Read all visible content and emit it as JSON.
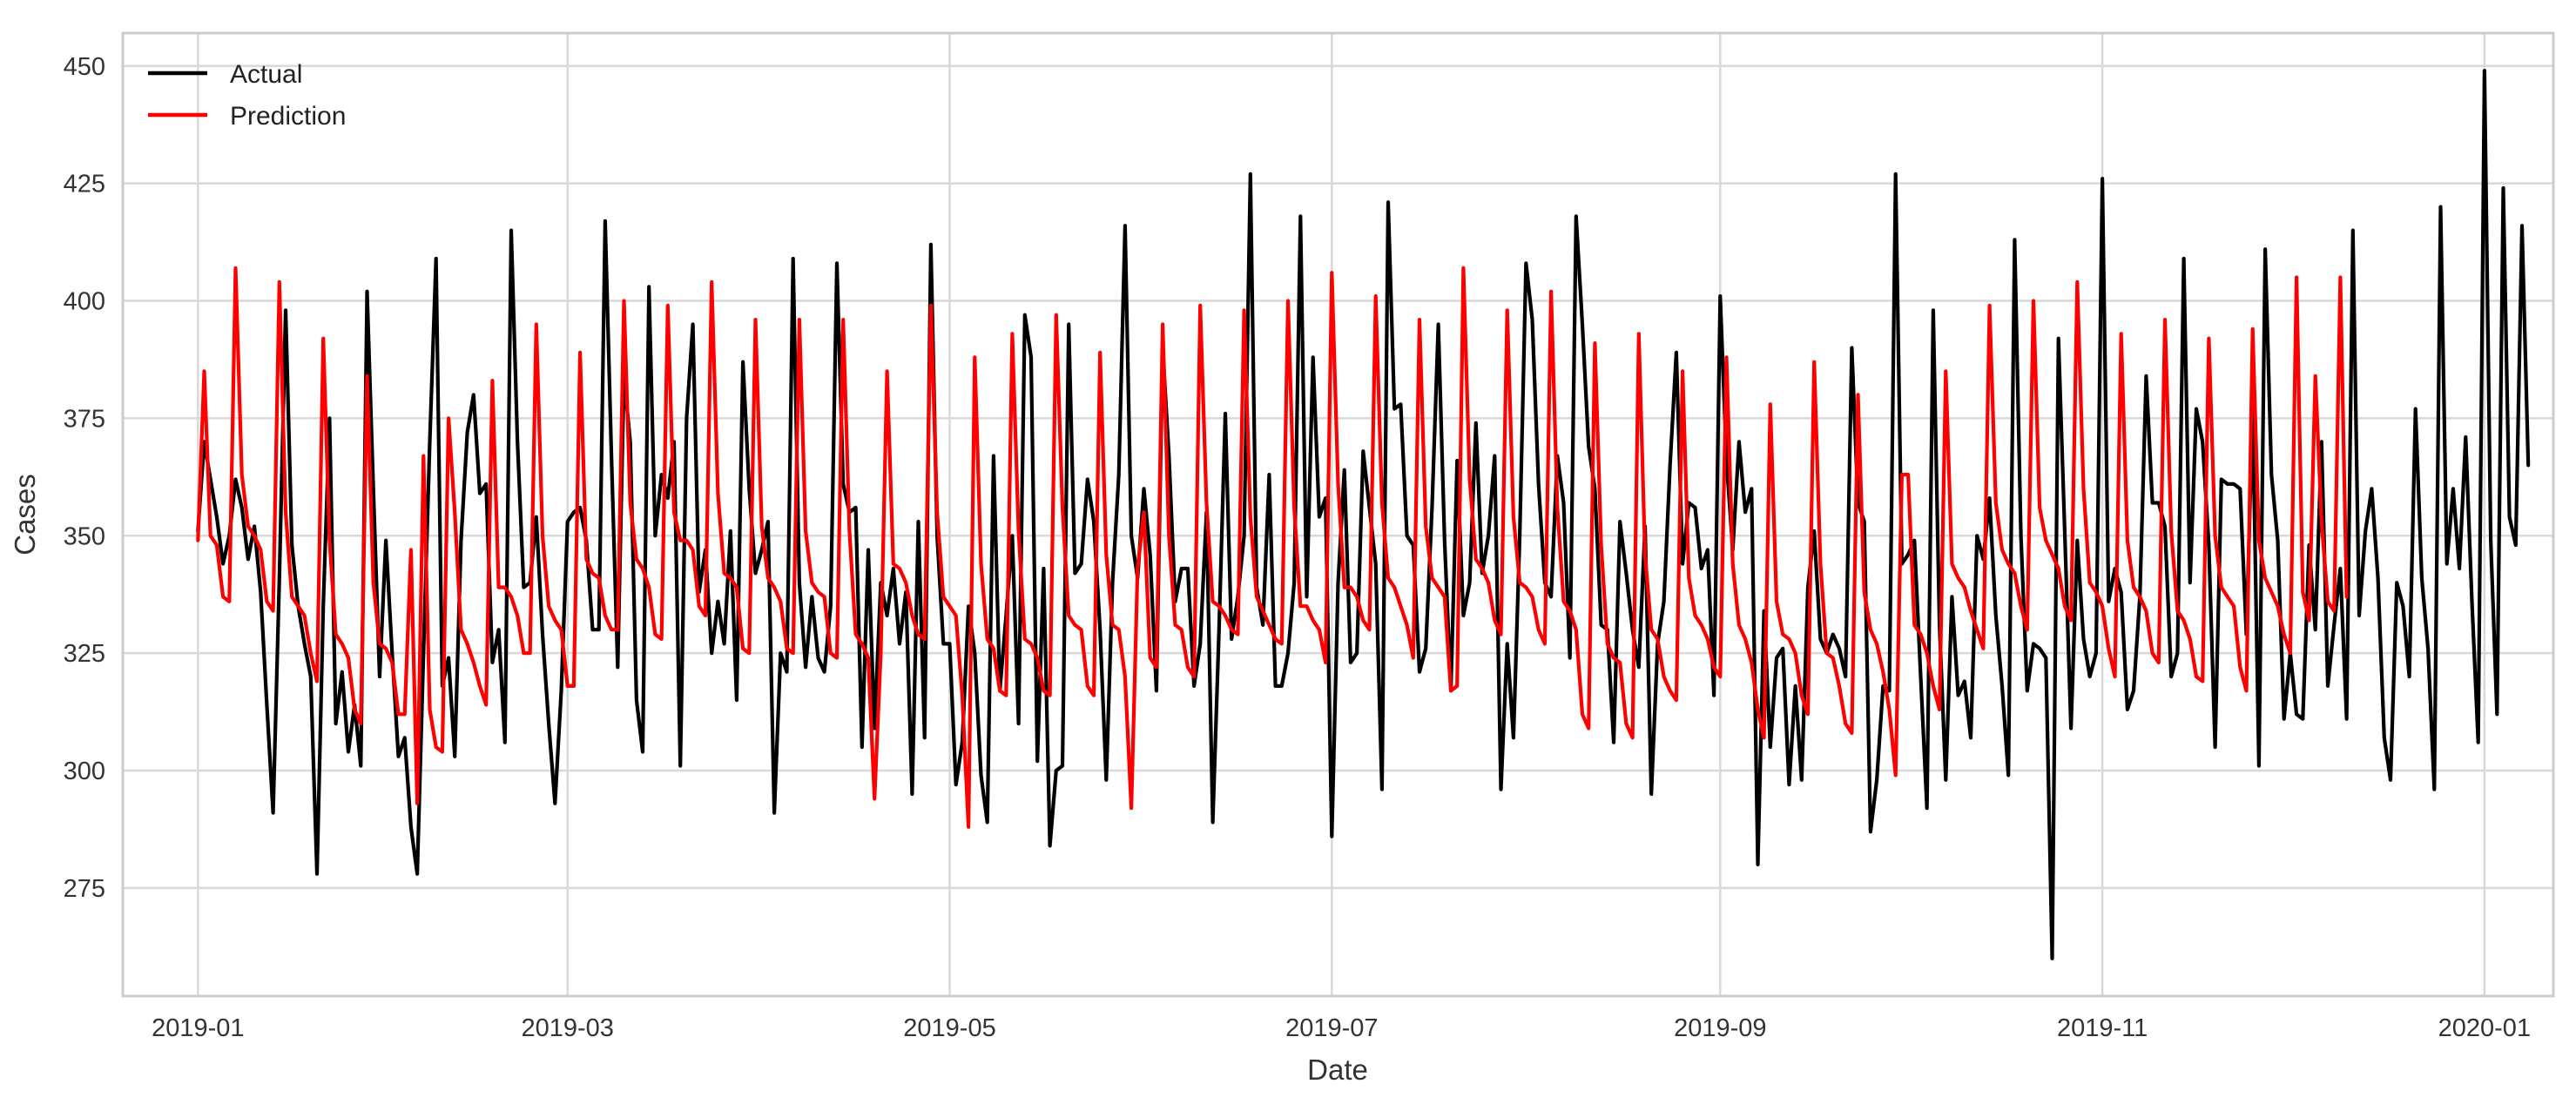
{
  "chart_data": {
    "type": "line",
    "title": "",
    "xlabel": "Date",
    "ylabel": "Cases",
    "x_start": "2019-01-01",
    "x_end": "2019-12-31",
    "xlim": [
      "2018-12-20",
      "2020-01-12"
    ],
    "ylim": [
      252,
      457
    ],
    "x_ticks": [
      "2019-01",
      "2019-03",
      "2019-05",
      "2019-07",
      "2019-09",
      "2019-11",
      "2020-01"
    ],
    "x_tick_dates": [
      "2019-01-01",
      "2019-03-01",
      "2019-05-01",
      "2019-07-01",
      "2019-09-01",
      "2019-11-01",
      "2020-01-01"
    ],
    "y_ticks": [
      275,
      300,
      325,
      350,
      375,
      400,
      425,
      450
    ],
    "grid": true,
    "legend_position": "top-left",
    "colors": {
      "Actual": "#000000",
      "Prediction": "#ff0000",
      "grid": "#d9d9d9",
      "frame": "#cccccc"
    },
    "series": [
      {
        "name": "Actual",
        "values": [
          351,
          370,
          362,
          354,
          344,
          350,
          362,
          356,
          345,
          352,
          338,
          314,
          291,
          341,
          398,
          348,
          335,
          327,
          320,
          278,
          335,
          375,
          310,
          321,
          304,
          314,
          301,
          402,
          360,
          320,
          349,
          325,
          303,
          307,
          288,
          278,
          325,
          370,
          409,
          318,
          324,
          303,
          349,
          372,
          380,
          359,
          361,
          323,
          330,
          306,
          415,
          370,
          339,
          340,
          354,
          329,
          310,
          293,
          317,
          353,
          355,
          356,
          349,
          330,
          330,
          417,
          367,
          322,
          384,
          370,
          315,
          304,
          403,
          350,
          363,
          358,
          370,
          301,
          375,
          395,
          338,
          347,
          325,
          336,
          327,
          351,
          315,
          387,
          360,
          342,
          347,
          353,
          291,
          325,
          321,
          409,
          340,
          322,
          337,
          324,
          321,
          335,
          408,
          361,
          355,
          356,
          305,
          347,
          309,
          340,
          333,
          343,
          327,
          338,
          295,
          353,
          307,
          412,
          350,
          327,
          327,
          297,
          306,
          335,
          325,
          299,
          289,
          367,
          317,
          333,
          350,
          310,
          397,
          388,
          302,
          343,
          284,
          300,
          301,
          395,
          342,
          344,
          362,
          353,
          330,
          298,
          340,
          363,
          416,
          350,
          341,
          360,
          346,
          317,
          390,
          367,
          336,
          343,
          343,
          318,
          327,
          355,
          289,
          330,
          376,
          328,
          337,
          350,
          427,
          339,
          331,
          363,
          318,
          318,
          325,
          340,
          418,
          337,
          388,
          354,
          358,
          286,
          340,
          364,
          323,
          325,
          368,
          356,
          344,
          296,
          421,
          377,
          378,
          350,
          348,
          321,
          326,
          356,
          395,
          349,
          317,
          366,
          333,
          340,
          374,
          342,
          350,
          367,
          296,
          327,
          307,
          350,
          408,
          396,
          361,
          340,
          337,
          367,
          357,
          324,
          418,
          395,
          369,
          360,
          331,
          330,
          306,
          353,
          342,
          330,
          322,
          352,
          295,
          327,
          336,
          365,
          389,
          344,
          357,
          356,
          343,
          347,
          316,
          401,
          366,
          347,
          370,
          355,
          360,
          280,
          334,
          305,
          324,
          326,
          297,
          318,
          298,
          339,
          351,
          328,
          325,
          329,
          326,
          320,
          390,
          357,
          353,
          287,
          298,
          318,
          317,
          427,
          344,
          346,
          349,
          320,
          292,
          398,
          331,
          298,
          337,
          316,
          319,
          307,
          350,
          345,
          358,
          333,
          318,
          299,
          413,
          350,
          317,
          327,
          326,
          324,
          260,
          392,
          351,
          309,
          349,
          328,
          320,
          325,
          426,
          336,
          343,
          338,
          313,
          317,
          337,
          384,
          357,
          357,
          352,
          320,
          325,
          409,
          340,
          377,
          370,
          348,
          305,
          362,
          361,
          361,
          360,
          329,
          377,
          301,
          411,
          363,
          349,
          311,
          325,
          312,
          311,
          348,
          330,
          370,
          318,
          331,
          343,
          311,
          415,
          333,
          351,
          360,
          341,
          307,
          298,
          340,
          335,
          320,
          377,
          341,
          326,
          296,
          420,
          344,
          360,
          343,
          371,
          336,
          306,
          449,
          349,
          312,
          424,
          354,
          348,
          416,
          365
        ]
      },
      {
        "name": "Prediction",
        "values": [
          349,
          385,
          350,
          348,
          337,
          336,
          407,
          363,
          352,
          350,
          347,
          336,
          334,
          404,
          355,
          337,
          335,
          333,
          325,
          319,
          392,
          349,
          329,
          327,
          324,
          313,
          310,
          384,
          340,
          327,
          326,
          323,
          312,
          312,
          347,
          293,
          367,
          313,
          305,
          304,
          375,
          355,
          330,
          327,
          323,
          318,
          314,
          383,
          339,
          339,
          337,
          333,
          325,
          325,
          395,
          350,
          335,
          332,
          330,
          318,
          318,
          389,
          345,
          342,
          341,
          333,
          330,
          330,
          400,
          357,
          345,
          343,
          339,
          329,
          328,
          399,
          355,
          349,
          349,
          347,
          335,
          333,
          404,
          359,
          342,
          341,
          339,
          326,
          325,
          396,
          352,
          341,
          339,
          336,
          326,
          325,
          396,
          351,
          340,
          338,
          337,
          325,
          324,
          396,
          351,
          329,
          327,
          324,
          294,
          325,
          385,
          344,
          343,
          340,
          333,
          329,
          328,
          399,
          355,
          337,
          335,
          333,
          316,
          288,
          388,
          344,
          328,
          326,
          317,
          316,
          393,
          351,
          328,
          327,
          324,
          317,
          316,
          397,
          356,
          333,
          331,
          330,
          318,
          316,
          389,
          346,
          331,
          330,
          320,
          292,
          343,
          355,
          324,
          322,
          395,
          350,
          331,
          330,
          322,
          320,
          399,
          357,
          336,
          335,
          333,
          330,
          329,
          398,
          354,
          337,
          334,
          331,
          328,
          327,
          400,
          356,
          335,
          335,
          332,
          330,
          323,
          406,
          361,
          339,
          339,
          337,
          332,
          330,
          401,
          357,
          341,
          339,
          335,
          331,
          324,
          396,
          352,
          341,
          339,
          337,
          317,
          318,
          407,
          362,
          345,
          343,
          340,
          332,
          329,
          398,
          354,
          340,
          339,
          337,
          330,
          327,
          402,
          356,
          336,
          334,
          330,
          312,
          309,
          391,
          348,
          327,
          324,
          323,
          310,
          307,
          393,
          346,
          330,
          328,
          320,
          317,
          315,
          385,
          341,
          333,
          331,
          328,
          322,
          320,
          388,
          344,
          331,
          328,
          323,
          313,
          307,
          378,
          336,
          329,
          328,
          325,
          316,
          312,
          387,
          344,
          325,
          324,
          318,
          310,
          308,
          380,
          338,
          330,
          327,
          321,
          313,
          299,
          363,
          363,
          331,
          329,
          325,
          318,
          313,
          385,
          344,
          341,
          339,
          334,
          330,
          326,
          399,
          357,
          347,
          344,
          342,
          335,
          330,
          400,
          356,
          349,
          346,
          343,
          335,
          332,
          404,
          360,
          340,
          338,
          335,
          326,
          320,
          393,
          349,
          339,
          337,
          334,
          325,
          323,
          396,
          351,
          334,
          332,
          328,
          320,
          319,
          392,
          350,
          339,
          337,
          335,
          322,
          317,
          394,
          349,
          341,
          338,
          335,
          329,
          325,
          405,
          338,
          332,
          384,
          353,
          336,
          334,
          405,
          337
        ]
      }
    ]
  }
}
